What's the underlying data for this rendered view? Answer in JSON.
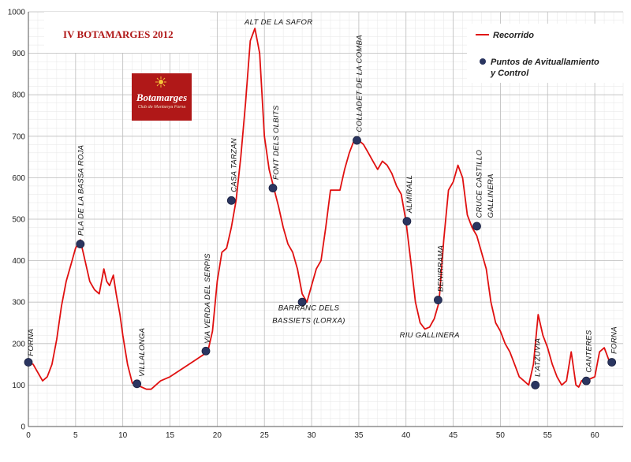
{
  "chart_data": {
    "type": "line",
    "title": "IV BOTAMARGES 2012",
    "xlabel": "",
    "ylabel": "",
    "xlim": [
      0,
      63
    ],
    "ylim": [
      0,
      1000
    ],
    "xticks": [
      0,
      5,
      10,
      15,
      20,
      25,
      30,
      35,
      40,
      45,
      50,
      55,
      60
    ],
    "yticks": [
      0,
      100,
      200,
      300,
      400,
      500,
      600,
      700,
      800,
      900,
      1000
    ],
    "grid": true,
    "legend_position": "top-right",
    "series": [
      {
        "name": "Recorrido",
        "color": "#e01010",
        "x": [
          0,
          0.5,
          1,
          1.5,
          2,
          2.5,
          3,
          3.5,
          4,
          4.5,
          5,
          5.5,
          6,
          6.5,
          7,
          7.5,
          8,
          8.3,
          8.6,
          9,
          9.3,
          9.7,
          10,
          10.5,
          11,
          11.5,
          12,
          12.5,
          13,
          14,
          15,
          16,
          17,
          18,
          19,
          19.5,
          20,
          20.5,
          21,
          21.5,
          22,
          22.5,
          23,
          23.5,
          24,
          24.5,
          25,
          25.5,
          26,
          26.5,
          27,
          27.5,
          28,
          28.5,
          29,
          29.5,
          30,
          30.5,
          31,
          31.5,
          32,
          32.5,
          33,
          33.5,
          34,
          34.5,
          35,
          35.5,
          36,
          36.5,
          37,
          37.5,
          38,
          38.5,
          39,
          39.5,
          40,
          40.5,
          41,
          41.5,
          42,
          42.5,
          43,
          43.5,
          44,
          44.5,
          45,
          45.5,
          46,
          46.5,
          47,
          47.5,
          48,
          48.5,
          49,
          49.5,
          50,
          50.5,
          51,
          51.5,
          52,
          52.5,
          53,
          53.5,
          54,
          54.5,
          55,
          55.5,
          56,
          56.5,
          57,
          57.5,
          58,
          58.3,
          58.6,
          59,
          59.5,
          60,
          60.5,
          61,
          61.5,
          62
        ],
        "values": [
          155,
          150,
          130,
          110,
          120,
          150,
          210,
          290,
          350,
          390,
          430,
          450,
          400,
          350,
          330,
          320,
          380,
          350,
          340,
          365,
          320,
          270,
          220,
          150,
          105,
          100,
          95,
          90,
          90,
          110,
          120,
          135,
          150,
          165,
          180,
          230,
          350,
          420,
          430,
          480,
          545,
          650,
          780,
          930,
          960,
          900,
          700,
          620,
          575,
          530,
          480,
          440,
          420,
          380,
          320,
          300,
          340,
          380,
          400,
          480,
          570,
          570,
          570,
          620,
          660,
          690,
          690,
          680,
          660,
          640,
          620,
          640,
          630,
          610,
          580,
          560,
          495,
          400,
          300,
          250,
          235,
          240,
          260,
          300,
          450,
          570,
          590,
          630,
          600,
          510,
          480,
          460,
          420,
          380,
          300,
          250,
          230,
          200,
          180,
          150,
          120,
          110,
          100,
          150,
          270,
          220,
          190,
          150,
          120,
          100,
          110,
          180,
          100,
          95,
          110,
          115,
          115,
          120,
          180,
          190,
          160,
          155
        ]
      }
    ],
    "points_series": {
      "name": "Puntos de Avituallamiento y Control",
      "color": "#2a3560",
      "x": [
        0,
        5.5,
        11.5,
        18.8,
        21.5,
        25.9,
        29,
        34.8,
        40.1,
        43.4,
        47.5,
        53.7,
        59.1,
        61.8
      ],
      "values": [
        155,
        440,
        103,
        182,
        545,
        575,
        300,
        690,
        495,
        305,
        483,
        100,
        110,
        155
      ]
    },
    "annotations": [
      {
        "text": "FORNA",
        "x": 0.5,
        "y": 170,
        "rotate": true
      },
      {
        "text": "PLA DE LA BASSA ROJA",
        "x": 5.8,
        "y": 460,
        "rotate": true
      },
      {
        "text": "VILLALONGA",
        "x": 12.3,
        "y": 120,
        "rotate": true
      },
      {
        "text": "VIA VERDA DEL SERPIS",
        "x": 19.2,
        "y": 200,
        "rotate": true
      },
      {
        "text": "CASA TARZAN",
        "x": 22,
        "y": 565,
        "rotate": true
      },
      {
        "text": "ALT DE LA SAFOR",
        "x": 26.5,
        "y": 970,
        "rotate": false
      },
      {
        "text": "FONT DELS OLBITS",
        "x": 26.5,
        "y": 595,
        "rotate": true
      },
      {
        "text": "BARRANC DELS",
        "x": 29.7,
        "y": 280,
        "rotate": false
      },
      {
        "text": "BASSIETS (LORXA)",
        "x": 29.7,
        "y": 250,
        "rotate": false
      },
      {
        "text": "COLLADET DE LA COMBA",
        "x": 35.3,
        "y": 710,
        "rotate": true
      },
      {
        "text": "ALMIRALL",
        "x": 40.6,
        "y": 515,
        "rotate": true
      },
      {
        "text": "BENIRRAMA",
        "x": 43.9,
        "y": 325,
        "rotate": true
      },
      {
        "text": "RIU GALLINERA",
        "x": 42.5,
        "y": 215,
        "rotate": false
      },
      {
        "text": "CRUCE CASTILLO",
        "x": 48,
        "y": 503,
        "rotate": true
      },
      {
        "text": "GALLINERA",
        "x": 49.2,
        "y": 503,
        "rotate": true
      },
      {
        "text": "L'ATZUVIA",
        "x": 54.2,
        "y": 120,
        "rotate": true
      },
      {
        "text": "CANTERES",
        "x": 59.6,
        "y": 130,
        "rotate": true
      },
      {
        "text": "FORNA",
        "x": 62.3,
        "y": 175,
        "rotate": true
      }
    ]
  },
  "legend": {
    "line_label": "Recorrido",
    "points_label_line1": "Puntos de Avituallamiento",
    "points_label_line2": "y Control"
  },
  "logo": {
    "name": "Botamarges",
    "tagline": "Club de Muntanya Forna",
    "color": "#b01818"
  }
}
